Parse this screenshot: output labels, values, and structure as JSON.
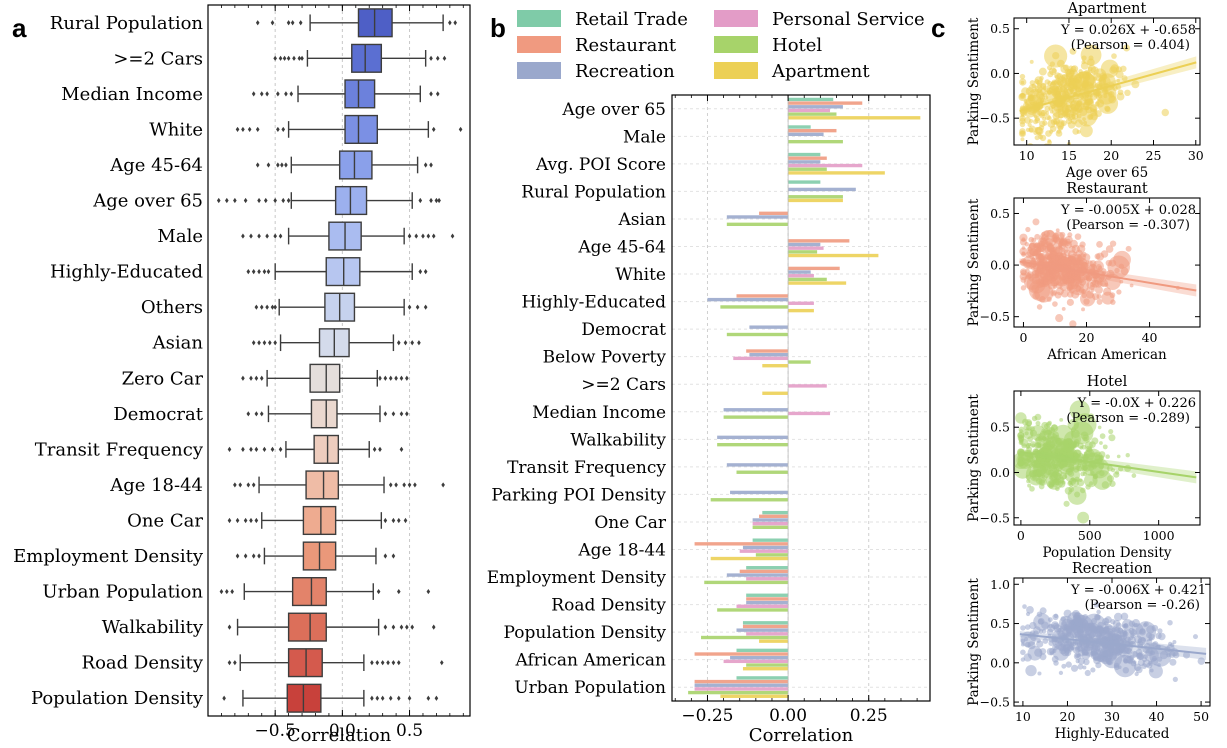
{
  "panel_letters": [
    "a",
    "b",
    "c"
  ],
  "colors": {
    "retail": "#7fcba8",
    "restaurant": "#f09a80",
    "recreation": "#9aa8cc",
    "personal": "#e39cc7",
    "hotel": "#a7d36a",
    "apartment": "#ecd055"
  },
  "chart_data": [
    {
      "type": "box",
      "panel": "a",
      "xlabel": "Correlation",
      "xlim": [
        -1.0,
        0.95
      ],
      "xticks": [
        -0.5,
        0.0,
        0.5
      ],
      "xtick_labels": [
        "−0.5",
        "0.0",
        "0.5"
      ],
      "categories": [
        "Rural Population",
        ">=2 Cars",
        "Median Income",
        "White",
        "Age 45-64",
        "Age over 65",
        "Male",
        "Highly-Educated",
        "Others",
        "Asian",
        "Zero Car",
        "Democrat",
        "Transit Frequency",
        "Age 18-44",
        "One Car",
        "Employment Density",
        "Urban Population",
        "Walkability",
        "Road Density",
        "Population Density"
      ],
      "boxes": [
        {
          "q1": 0.12,
          "med": 0.24,
          "q3": 0.37,
          "wlo": -0.24,
          "whi": 0.75,
          "fliers": [
            -0.63,
            -0.52,
            -0.4,
            -0.37,
            -0.31,
            0.8,
            0.84
          ],
          "color": "#4e5fc6"
        },
        {
          "q1": 0.07,
          "med": 0.17,
          "q3": 0.29,
          "wlo": -0.26,
          "whi": 0.62,
          "fliers": [
            -0.5,
            -0.46,
            -0.43,
            -0.4,
            -0.36,
            -0.32,
            -0.3,
            0.66,
            0.71,
            0.76
          ],
          "color": "#5b6fd2"
        },
        {
          "q1": 0.02,
          "med": 0.12,
          "q3": 0.24,
          "wlo": -0.33,
          "whi": 0.58,
          "fliers": [
            -0.66,
            -0.6,
            -0.56,
            -0.48,
            -0.42,
            -0.38,
            0.66,
            0.71
          ],
          "color": "#6c81dc"
        },
        {
          "q1": 0.02,
          "med": 0.12,
          "q3": 0.26,
          "wlo": -0.4,
          "whi": 0.64,
          "fliers": [
            -0.78,
            -0.74,
            -0.69,
            -0.63,
            -0.48,
            -0.44,
            0.68,
            0.88
          ],
          "color": "#7b90e4"
        },
        {
          "q1": -0.02,
          "med": 0.09,
          "q3": 0.22,
          "wlo": -0.38,
          "whi": 0.56,
          "fliers": [
            -0.63,
            -0.55,
            -0.48,
            -0.45,
            -0.42,
            0.62,
            0.66
          ],
          "color": "#8aa0ea"
        },
        {
          "q1": -0.05,
          "med": 0.06,
          "q3": 0.18,
          "wlo": -0.38,
          "whi": 0.52,
          "fliers": [
            -0.92,
            -0.86,
            -0.8,
            -0.72,
            -0.62,
            -0.57,
            -0.5,
            -0.44,
            -0.4,
            0.58,
            0.66,
            0.7,
            0.72
          ],
          "color": "#9cb0ee"
        },
        {
          "q1": -0.1,
          "med": 0.02,
          "q3": 0.14,
          "wlo": -0.4,
          "whi": 0.46,
          "fliers": [
            -0.74,
            -0.68,
            -0.62,
            -0.56,
            -0.5,
            -0.46,
            0.5,
            0.55,
            0.6,
            0.64,
            0.68,
            0.82
          ],
          "color": "#aabcf0"
        },
        {
          "q1": -0.12,
          "med": 0.01,
          "q3": 0.13,
          "wlo": -0.5,
          "whi": 0.52,
          "fliers": [
            -0.7,
            -0.66,
            -0.62,
            -0.58,
            -0.55,
            0.58,
            0.62
          ],
          "color": "#b7c6f0"
        },
        {
          "q1": -0.13,
          "med": -0.02,
          "q3": 0.09,
          "wlo": -0.47,
          "whi": 0.46,
          "fliers": [
            -0.64,
            -0.6,
            -0.56,
            -0.52,
            -0.5,
            0.5,
            0.56,
            0.62
          ],
          "color": "#c6d2ee"
        },
        {
          "q1": -0.17,
          "med": -0.06,
          "q3": 0.05,
          "wlo": -0.46,
          "whi": 0.38,
          "fliers": [
            -0.66,
            -0.62,
            -0.58,
            -0.54,
            -0.5,
            0.42,
            0.47,
            0.52,
            0.57
          ],
          "color": "#d4dbeb"
        },
        {
          "q1": -0.24,
          "med": -0.12,
          "q3": -0.02,
          "wlo": -0.56,
          "whi": 0.26,
          "fliers": [
            -0.74,
            -0.68,
            -0.64,
            -0.6,
            0.28,
            0.32,
            0.36,
            0.4,
            0.44,
            0.48
          ],
          "color": "#e4dedb"
        },
        {
          "q1": -0.23,
          "med": -0.12,
          "q3": -0.04,
          "wlo": -0.55,
          "whi": 0.28,
          "fliers": [
            -0.7,
            -0.64,
            -0.6,
            0.32,
            0.38,
            0.44,
            0.48
          ],
          "color": "#ead8cf"
        },
        {
          "q1": -0.21,
          "med": -0.11,
          "q3": -0.03,
          "wlo": -0.42,
          "whi": 0.2,
          "fliers": [
            -0.84,
            -0.74,
            -0.68,
            -0.64,
            -0.58,
            -0.52,
            -0.46,
            0.24,
            0.28,
            0.44
          ],
          "color": "#eecdbe"
        },
        {
          "q1": -0.27,
          "med": -0.14,
          "q3": -0.03,
          "wlo": -0.62,
          "whi": 0.31,
          "fliers": [
            -0.8,
            -0.76,
            -0.7,
            -0.66,
            0.36,
            0.4,
            0.46,
            0.5,
            0.54,
            0.75
          ],
          "color": "#efbca6"
        },
        {
          "q1": -0.29,
          "med": -0.16,
          "q3": -0.05,
          "wlo": -0.6,
          "whi": 0.29,
          "fliers": [
            -0.84,
            -0.78,
            -0.72,
            -0.68,
            -0.64,
            0.32,
            0.38,
            0.42,
            0.47
          ],
          "color": "#eeab90"
        },
        {
          "q1": -0.29,
          "med": -0.17,
          "q3": -0.05,
          "wlo": -0.58,
          "whi": 0.25,
          "fliers": [
            -0.78,
            -0.72,
            -0.66,
            -0.62,
            0.32,
            0.38
          ],
          "color": "#ea987a"
        },
        {
          "q1": -0.37,
          "med": -0.23,
          "q3": -0.12,
          "wlo": -0.73,
          "whi": 0.23,
          "fliers": [
            -0.9,
            -0.86,
            -0.82,
            0.27,
            0.42,
            0.64
          ],
          "color": "#e3836a"
        },
        {
          "q1": -0.4,
          "med": -0.24,
          "q3": -0.12,
          "wlo": -0.78,
          "whi": 0.27,
          "fliers": [
            -0.84,
            0.32,
            0.38,
            0.44,
            0.48,
            0.52,
            0.68
          ],
          "color": "#dc6f5a"
        },
        {
          "q1": -0.4,
          "med": -0.27,
          "q3": -0.15,
          "wlo": -0.76,
          "whi": 0.16,
          "fliers": [
            -0.84,
            -0.8,
            0.22,
            0.26,
            0.3,
            0.34,
            0.38,
            0.42,
            0.74
          ],
          "color": "#d45a4d"
        },
        {
          "q1": -0.41,
          "med": -0.29,
          "q3": -0.16,
          "wlo": -0.74,
          "whi": 0.16,
          "fliers": [
            -0.88,
            0.22,
            0.26,
            0.3,
            0.36,
            0.42,
            0.5,
            0.64,
            0.7
          ],
          "color": "#c8413b"
        }
      ]
    },
    {
      "type": "bar",
      "panel": "b",
      "orientation": "horizontal",
      "xlabel": "Correlation",
      "xlim": [
        -0.36,
        0.44
      ],
      "xticks": [
        -0.25,
        0.0,
        0.25
      ],
      "xtick_labels": [
        "−0.25",
        "0.00",
        "0.25"
      ],
      "legend": [
        "Retail Trade",
        "Restaurant",
        "Recreation",
        "Personal Service",
        "Hotel",
        "Apartment"
      ],
      "categories": [
        "Age over 65",
        "Male",
        "Avg. POI Score",
        "Rural Population",
        "Asian",
        "Age 45-64",
        "White",
        "Highly-Educated",
        "Democrat",
        "Below Poverty",
        ">=2 Cars",
        "Median Income",
        "Walkability",
        "Transit Frequency",
        "Parking POI Density",
        "One Car",
        "Age 18-44",
        "Employment Density",
        "Road Density",
        "Population Density",
        "African American",
        "Urban Population"
      ],
      "series": [
        {
          "name": "Retail Trade",
          "color": "#7fcba8",
          "values": [
            0.14,
            0.07,
            0.1,
            0.1,
            0,
            0,
            0,
            0,
            0,
            0,
            0,
            0,
            0,
            0,
            0,
            -0.08,
            -0.11,
            -0.13,
            -0.13,
            -0.14,
            -0.16,
            -0.16
          ]
        },
        {
          "name": "Restaurant",
          "color": "#f09a80",
          "values": [
            0.23,
            0.15,
            0.12,
            0,
            -0.09,
            0.19,
            0.16,
            -0.16,
            0,
            -0.13,
            0,
            0,
            0,
            0,
            0,
            -0.09,
            -0.29,
            -0.15,
            -0.13,
            -0.14,
            -0.29,
            -0.29
          ]
        },
        {
          "name": "Recreation",
          "color": "#9aa8cc",
          "values": [
            0.17,
            0.11,
            0.1,
            0.21,
            -0.19,
            0.1,
            0.07,
            -0.25,
            -0.12,
            -0.12,
            0,
            -0.2,
            -0.22,
            -0.19,
            -0.18,
            -0.11,
            -0.14,
            -0.19,
            -0.13,
            -0.16,
            -0.18,
            -0.29
          ]
        },
        {
          "name": "Personal Service",
          "color": "#e39cc7",
          "values": [
            0.13,
            0,
            0.23,
            0,
            0,
            0.11,
            0.08,
            0.08,
            0,
            -0.17,
            0.12,
            0.13,
            0,
            0,
            0,
            -0.11,
            -0.15,
            -0.13,
            -0.16,
            -0.13,
            -0.2,
            -0.29
          ]
        },
        {
          "name": "Hotel",
          "color": "#a7d36a",
          "values": [
            0.15,
            0.17,
            0.12,
            0.17,
            -0.19,
            0.09,
            0.12,
            -0.21,
            -0.19,
            0.07,
            0,
            -0.2,
            -0.22,
            -0.16,
            -0.24,
            -0.11,
            -0.1,
            -0.26,
            -0.22,
            -0.27,
            -0.13,
            -0.31
          ]
        },
        {
          "name": "Apartment",
          "color": "#ecd055",
          "values": [
            0.41,
            0,
            0.3,
            0.17,
            0,
            0.28,
            0.18,
            0.08,
            0,
            -0.08,
            -0.08,
            0,
            0,
            0,
            0,
            0,
            -0.24,
            0,
            0,
            -0.09,
            -0.14,
            -0.21
          ]
        }
      ]
    },
    {
      "type": "scatter",
      "panel": "c",
      "title": "Apartment",
      "xlabel": "Age over 65",
      "ylabel": "Parking Sentiment",
      "xlim": [
        8.5,
        30.5
      ],
      "ylim": [
        -0.8,
        0.62
      ],
      "xticks": [
        10,
        15,
        20,
        25,
        30
      ],
      "yticks": [
        -0.5,
        0.0,
        0.5
      ],
      "ytick_labels": [
        "−0.5",
        "0.0",
        "0.5"
      ],
      "equation": "Y = 0.026X + -0.658",
      "pearson": "(Pearson = 0.404)",
      "color": "#ecd055",
      "fit": {
        "slope": 0.026,
        "intercept": -0.658
      },
      "cloud": {
        "xmean": 14.5,
        "xsd": 3.2,
        "xmin": 9.5,
        "xmax": 30,
        "resid_sd": 0.19,
        "n": 420,
        "seed": 11
      }
    },
    {
      "type": "scatter",
      "panel": "c",
      "title": "Restaurant",
      "xlabel": "African American",
      "ylabel": "Parking Sentiment",
      "xlim": [
        -3,
        56
      ],
      "ylim": [
        -0.6,
        0.65
      ],
      "xticks": [
        0,
        20,
        40
      ],
      "yticks": [
        -0.5,
        0.0,
        0.5
      ],
      "ytick_labels": [
        "−0.5",
        "0.0",
        "0.5"
      ],
      "equation": "Y = -0.005X + 0.028",
      "pearson": "(Pearson = -0.307)",
      "color": "#f09a80",
      "fit": {
        "slope": -0.005,
        "intercept": 0.028
      },
      "cloud": {
        "xmean": 8,
        "xsd": 10,
        "xmin": 0,
        "xmax": 54,
        "resid_sd": 0.14,
        "n": 520,
        "seed": 23
      }
    },
    {
      "type": "scatter",
      "panel": "c",
      "title": "Hotel",
      "xlabel": "Population Density",
      "ylabel": "Parking Sentiment",
      "xlim": [
        -50,
        1300
      ],
      "ylim": [
        -0.58,
        0.9
      ],
      "xticks": [
        0,
        500,
        1000
      ],
      "yticks": [
        -0.5,
        0.0,
        0.5
      ],
      "ytick_labels": [
        "−0.5",
        "0.0",
        "0.5"
      ],
      "equation": "Y = -0.0X + 0.226",
      "pearson": "(Pearson = -0.289)",
      "color": "#a7d36a",
      "fit": {
        "slope": -0.00022,
        "intercept": 0.226
      },
      "cloud": {
        "xmean": 180,
        "xsd": 220,
        "xmin": 0,
        "xmax": 1250,
        "resid_sd": 0.17,
        "n": 420,
        "seed": 37
      }
    },
    {
      "type": "scatter",
      "panel": "c",
      "title": "Recreation",
      "xlabel": "Highly-Educated",
      "ylabel": "Parking Sentiment",
      "xlim": [
        8,
        52
      ],
      "ylim": [
        -0.55,
        1.08
      ],
      "xticks": [
        10,
        20,
        30,
        40,
        50
      ],
      "yticks": [
        -0.5,
        0.0,
        0.5,
        1.0
      ],
      "ytick_labels": [
        "−0.5",
        "0.0",
        "0.5",
        "1.0"
      ],
      "equation": "Y = -0.006X + 0.421",
      "pearson": "(Pearson = -0.26)",
      "color": "#9aa8cc",
      "fit": {
        "slope": -0.006,
        "intercept": 0.421
      },
      "cloud": {
        "xmean": 27,
        "xsd": 8,
        "xmin": 10,
        "xmax": 51,
        "resid_sd": 0.17,
        "n": 480,
        "seed": 53
      }
    }
  ]
}
